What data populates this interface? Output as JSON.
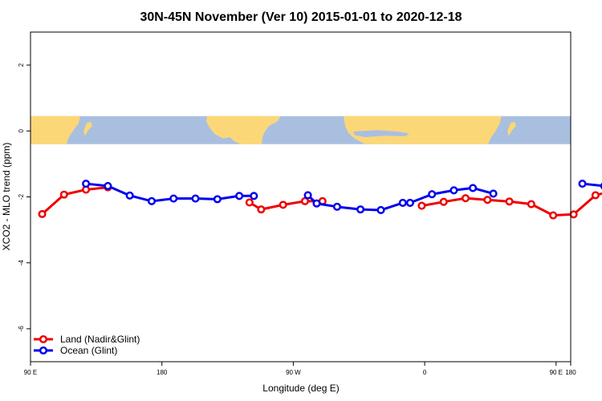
{
  "chart_data": {
    "type": "line",
    "title": "30N-45N November (Ver 10)   2015-01-01 to 2020-12-18",
    "xlabel": "Longitude (deg E)",
    "ylabel": "XCO2 - MLO trend (ppm)",
    "xlim": [
      90,
      460
    ],
    "ylim": [
      -7.0,
      3.0
    ],
    "x_ticks": [
      {
        "value": 90,
        "label": "90 E"
      },
      {
        "value": 180,
        "label": "180"
      },
      {
        "value": 270,
        "label": "90 W"
      },
      {
        "value": 360,
        "label": "0"
      },
      {
        "value": 450,
        "label": "90 E"
      },
      {
        "value": 540,
        "label": "180"
      }
    ],
    "y_ticks": [
      {
        "value": 2,
        "label": "2"
      },
      {
        "value": 0,
        "label": "0"
      },
      {
        "value": -2,
        "label": "-2"
      },
      {
        "value": -4,
        "label": "-4"
      },
      {
        "value": -6,
        "label": "-6"
      }
    ],
    "map_band": {
      "ymin": -0.4,
      "ymax": 0.45,
      "ocean_color": "#a9bfe0",
      "land_color": "#fcd777"
    },
    "legend": {
      "position": "bottom-left"
    },
    "series": [
      {
        "name": "Land (Nadir&Glint)",
        "color": "#ee0000",
        "segments": [
          {
            "x": [
              98,
              113,
              128,
              143
            ],
            "y": [
              -2.52,
              -1.93,
              -1.78,
              -1.71
            ]
          },
          {
            "x": [
              240,
              248,
              263,
              278,
              290
            ],
            "y": [
              -2.17,
              -2.38,
              -2.24,
              -2.13,
              -2.13
            ]
          },
          {
            "x": [
              358,
              373,
              388,
              403,
              418,
              433,
              448,
              462,
              477,
              492,
              507,
              522
            ],
            "y": [
              -2.27,
              -2.15,
              -2.04,
              -2.09,
              -2.14,
              -2.22,
              -2.56,
              -2.53,
              -1.95,
              -1.78,
              -1.69,
              -1.71
            ]
          }
        ]
      },
      {
        "name": "Ocean (Glint)",
        "color": "#0000ee",
        "segments": [
          {
            "x": [
              128,
              143,
              158,
              173,
              188,
              203,
              218,
              233,
              243
            ],
            "y": [
              -1.6,
              -1.67,
              -1.96,
              -2.13,
              -2.05,
              -2.05,
              -2.07,
              -1.97,
              -1.97
            ]
          },
          {
            "x": [
              280,
              286,
              300,
              316,
              330,
              345
            ],
            "y": [
              -1.95,
              -2.2,
              -2.3,
              -2.38,
              -2.4,
              -2.18
            ]
          },
          {
            "x": [
              350,
              365,
              380,
              393,
              407
            ],
            "y": [
              -2.18,
              -1.92,
              -1.8,
              -1.73,
              -1.9
            ]
          },
          {
            "x": [
              468,
              483,
              498,
              513,
              528
            ],
            "y": [
              -1.6,
              -1.67,
              -1.95,
              -2.13,
              -2.13
            ]
          }
        ]
      }
    ]
  }
}
